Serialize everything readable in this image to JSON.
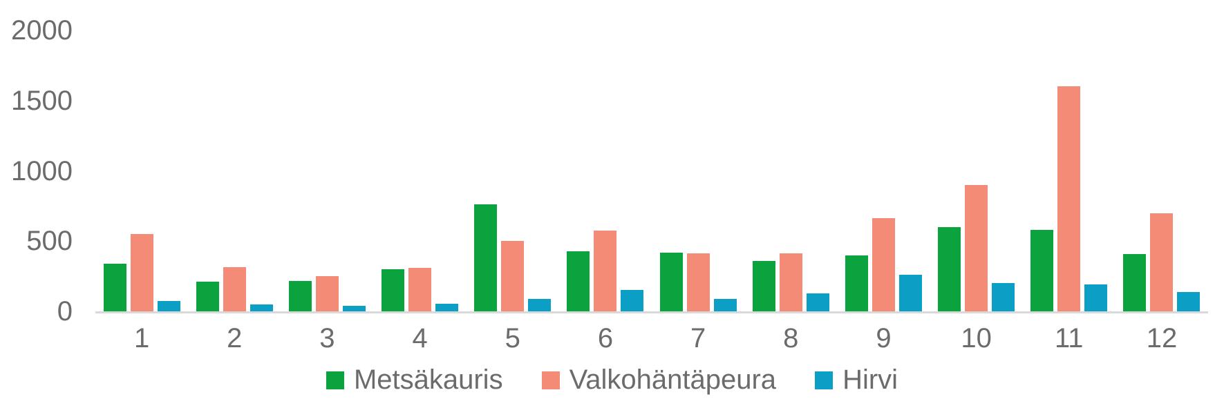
{
  "chart_data": {
    "type": "bar",
    "title": "",
    "xlabel": "",
    "ylabel": "",
    "categories": [
      "1",
      "2",
      "3",
      "4",
      "5",
      "6",
      "7",
      "8",
      "9",
      "10",
      "11",
      "12"
    ],
    "series": [
      {
        "name": "Metsäkauris",
        "color": "#0ba33d",
        "values": [
          340,
          210,
          215,
          300,
          760,
          430,
          420,
          360,
          400,
          600,
          580,
          410
        ]
      },
      {
        "name": "Valkohäntäpeura",
        "color": "#f48b76",
        "values": [
          550,
          315,
          250,
          310,
          500,
          575,
          415,
          415,
          665,
          900,
          1600,
          700
        ]
      },
      {
        "name": "Hirvi",
        "color": "#0c9fc6",
        "values": [
          75,
          50,
          40,
          55,
          90,
          150,
          90,
          130,
          260,
          200,
          190,
          140
        ]
      }
    ],
    "ylim": [
      0,
      2000
    ],
    "yticks": [
      0,
      500,
      1000,
      1500,
      2000
    ],
    "grid": false,
    "legend_position": "bottom"
  },
  "colors": {
    "axis_line": "#d9d9d9",
    "tick_text": "#6b6b6b",
    "background": "#ffffff"
  }
}
